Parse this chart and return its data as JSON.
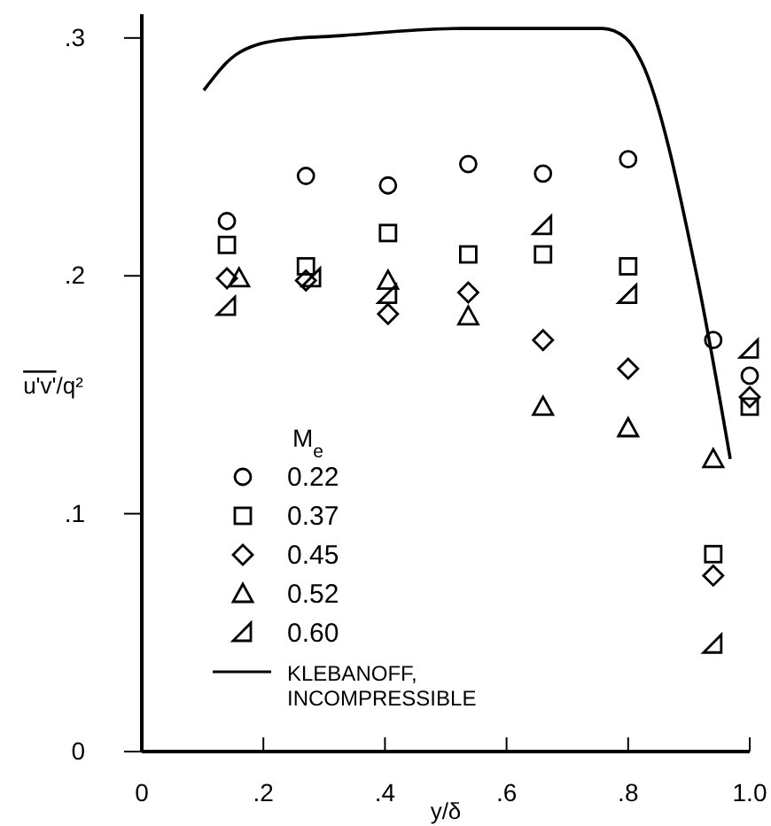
{
  "chart_data": {
    "type": "scatter",
    "xlabel": "y/δ",
    "ylabel": "u'v'/q²",
    "legend_title": "M$_{e}$",
    "legend": "bottom left",
    "xlim": [
      0,
      1
    ],
    "ylim": [
      0,
      0.31
    ],
    "xticks": [
      {
        "value": 0,
        "label": "0"
      },
      {
        "value": 0.2,
        "label": ".2"
      },
      {
        "value": 0.4,
        "label": ".4"
      },
      {
        "value": 0.6,
        "label": ".6"
      },
      {
        "value": 0.8,
        "label": ".8"
      },
      {
        "value": 1,
        "label": "1.0"
      }
    ],
    "yticks": [
      {
        "value": 0,
        "label": "0"
      },
      {
        "value": 0.1,
        "label": ".1"
      },
      {
        "value": 0.2,
        "label": ".2"
      },
      {
        "value": 0.3,
        "label": ".3"
      }
    ],
    "series": [
      {
        "name": "0.22",
        "color": "#000000",
        "marker": "circle",
        "x": [
          0.14,
          0.27,
          0.405,
          0.537,
          0.66,
          0.8,
          0.94,
          1.0
        ],
        "values": [
          0.223,
          0.242,
          0.238,
          0.247,
          0.243,
          0.249,
          0.173,
          0.158
        ]
      },
      {
        "name": "0.37",
        "color": "#000000",
        "marker": "square",
        "x": [
          0.14,
          0.27,
          0.405,
          0.537,
          0.66,
          0.8,
          0.94,
          1.0
        ],
        "values": [
          0.213,
          0.204,
          0.218,
          0.209,
          0.209,
          0.204,
          0.083,
          0.145
        ]
      },
      {
        "name": "0.45",
        "color": "#000000",
        "marker": "diamond",
        "x": [
          0.14,
          0.27,
          0.405,
          0.537,
          0.66,
          0.8,
          0.94,
          1.0
        ],
        "values": [
          0.199,
          0.198,
          0.184,
          0.193,
          0.173,
          0.161,
          0.074,
          0.149
        ]
      },
      {
        "name": "0.52",
        "color": "#000000",
        "marker": "triangle",
        "x": [
          0.16,
          0.405,
          0.537,
          0.66,
          0.8,
          0.94
        ],
        "values": [
          0.199,
          0.198,
          0.183,
          0.145,
          0.136,
          0.123
        ]
      },
      {
        "name": "0.60",
        "color": "#000000",
        "marker": "triangle",
        "x": [
          0.14,
          0.28,
          0.405,
          0.66,
          0.8,
          0.94,
          1.0
        ],
        "values": [
          0.187,
          0.199,
          0.192,
          0.221,
          0.192,
          0.045,
          0.169
        ]
      },
      {
        "name": "KLEBANOFF, INCOMPRESSIBLE",
        "type": "line",
        "color": "#000000",
        "marker": "none",
        "line_style": "solid",
        "x": [
          0.102,
          0.155,
          0.224,
          0.33,
          0.525,
          0.758,
          0.796,
          0.822,
          0.913,
          0.968
        ],
        "values": [
          0.278,
          0.293,
          0.299,
          0.301,
          0.304,
          0.304,
          0.3,
          0.29,
          0.2,
          0.123
        ]
      }
    ]
  }
}
